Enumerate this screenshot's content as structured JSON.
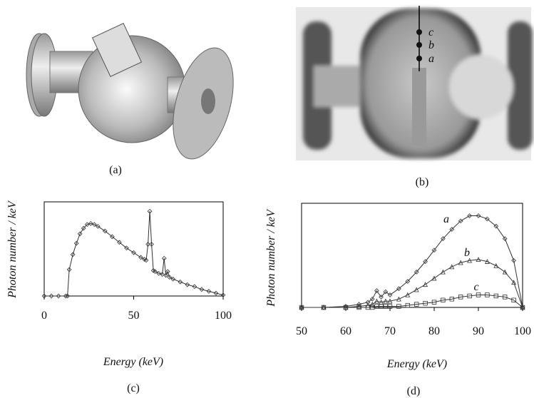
{
  "panels": [
    {
      "caption": "(a)"
    },
    {
      "caption": "(b)",
      "points": [
        "c",
        "b",
        "a"
      ]
    }
  ],
  "chart_data": [
    {
      "type": "line",
      "caption": "(c)",
      "xlabel": "Energy (keV)",
      "ylabel": "Photon number / keV",
      "xlim": [
        0,
        100
      ],
      "xticks": [
        0,
        50,
        100
      ],
      "ylim": [
        0,
        100
      ],
      "marker": "diamond",
      "x": [
        0,
        4,
        8,
        12,
        13,
        14,
        16,
        18,
        20,
        22,
        24,
        26,
        28,
        30,
        34,
        38,
        42,
        46,
        50,
        54,
        56,
        57,
        58,
        59,
        60,
        61,
        62,
        64,
        66,
        67,
        68,
        69,
        70,
        72,
        76,
        80,
        84,
        88,
        92,
        96,
        100
      ],
      "series": [
        {
          "color": "#333333",
          "values": [
            0,
            0,
            0,
            0,
            0,
            28,
            44,
            56,
            66,
            72,
            76,
            77,
            76,
            74,
            69,
            63,
            57,
            51,
            46,
            41,
            39,
            38,
            55,
            90,
            55,
            27,
            26,
            24,
            23,
            40,
            22,
            26,
            20,
            18,
            15,
            12,
            10,
            7,
            5,
            3,
            1
          ]
        }
      ]
    },
    {
      "type": "line",
      "caption": "(d)",
      "xlabel": "Energy (keV)",
      "ylabel": "Photon number / keV",
      "xlim": [
        50,
        100
      ],
      "xticks": [
        50,
        60,
        70,
        80,
        90,
        100
      ],
      "ylim": [
        0,
        100
      ],
      "x": [
        50,
        55,
        60,
        63,
        65,
        66,
        67,
        68,
        69,
        70,
        72,
        74,
        76,
        78,
        80,
        82,
        84,
        86,
        88,
        90,
        92,
        94,
        96,
        98,
        100
      ],
      "series": [
        {
          "name": "a",
          "color": "#333333",
          "marker": "diamond",
          "values": [
            0,
            0,
            1,
            3,
            5,
            8,
            16,
            10,
            15,
            12,
            18,
            25,
            34,
            44,
            55,
            66,
            75,
            83,
            88,
            88,
            85,
            78,
            66,
            45,
            0
          ]
        },
        {
          "name": "b",
          "color": "#333333",
          "marker": "triangle",
          "values": [
            0,
            0,
            0,
            1,
            2,
            3,
            6,
            5,
            6,
            6,
            8,
            12,
            17,
            22,
            28,
            34,
            39,
            43,
            45,
            46,
            44,
            40,
            34,
            24,
            0
          ]
        },
        {
          "name": "c",
          "color": "#333333",
          "marker": "square",
          "values": [
            0,
            0,
            0,
            0,
            0,
            0,
            1,
            1,
            1,
            1,
            1,
            2,
            3,
            4,
            5,
            7,
            8,
            10,
            11,
            12,
            12,
            11,
            10,
            7,
            0
          ]
        }
      ]
    }
  ]
}
